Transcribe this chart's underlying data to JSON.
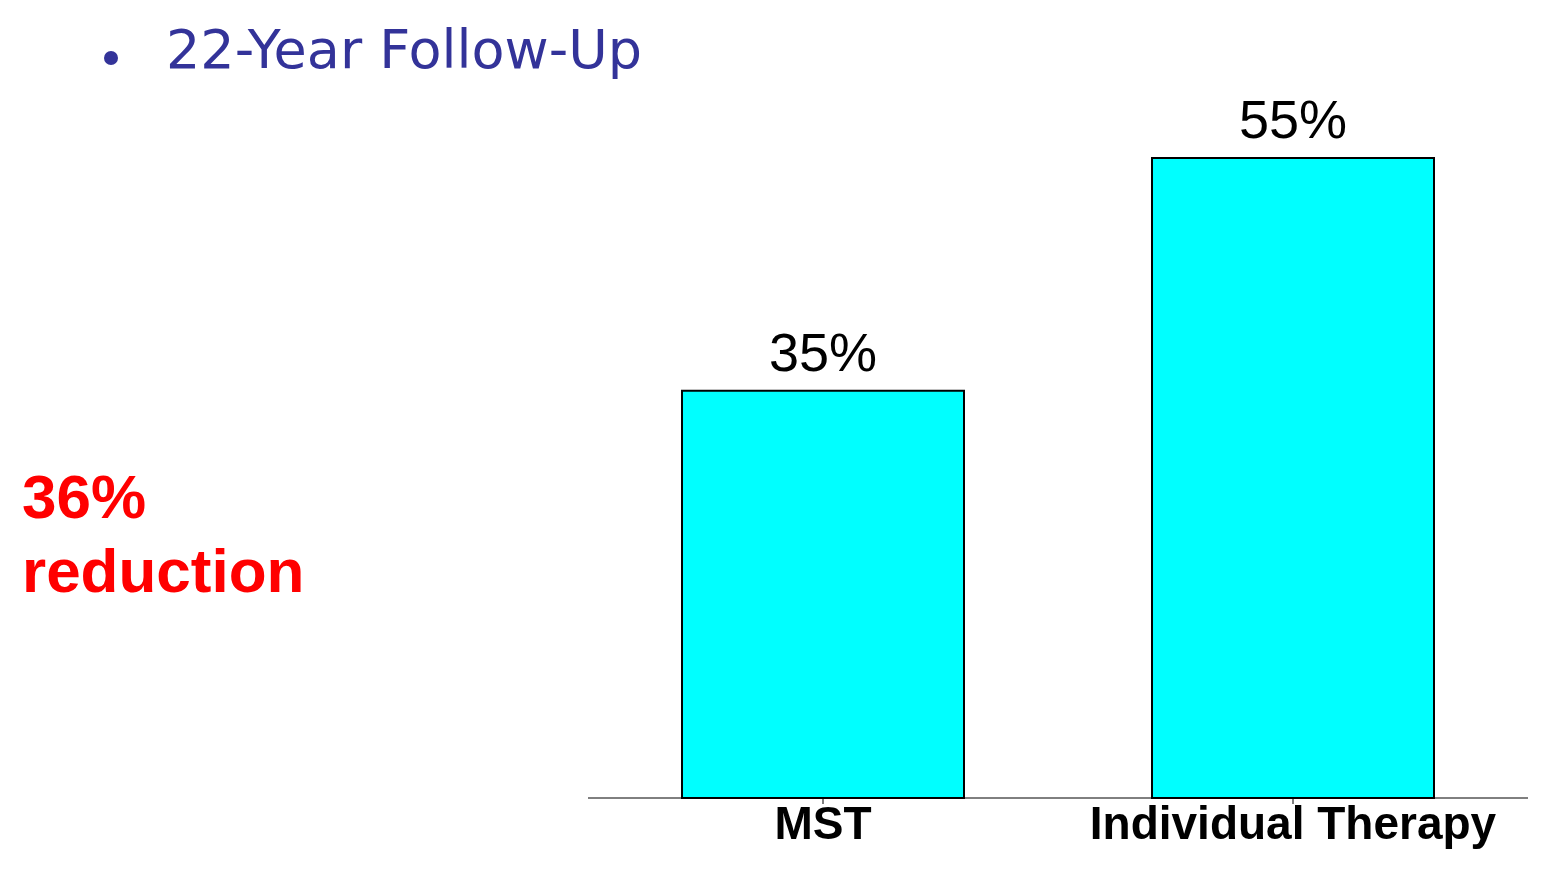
{
  "chart_data": {
    "type": "bar",
    "title": "22-Year Follow-Up",
    "categories": [
      "MST",
      "Individual Therapy"
    ],
    "values": [
      35,
      55
    ],
    "value_labels": [
      "35%",
      "55%"
    ],
    "color": "#00ffff",
    "annotations": [
      "36% reduction"
    ]
  }
}
